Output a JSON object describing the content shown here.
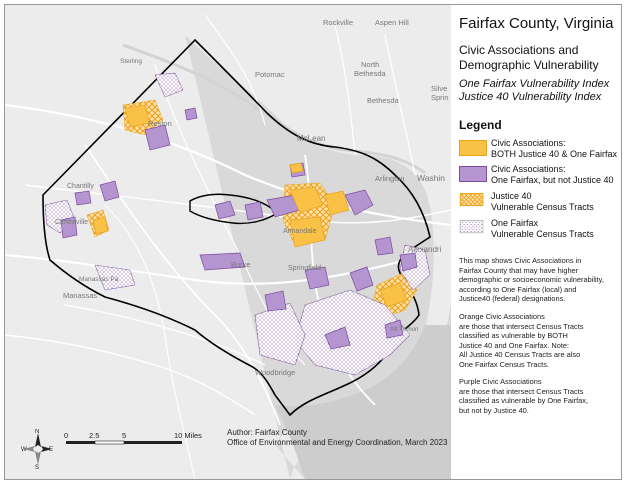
{
  "map": {
    "place_labels": {
      "rockville": "Rockville",
      "aspen_hill": "Aspen Hill",
      "sterling": "Sterling",
      "potomac": "Potomac",
      "north_bethesda": "North\nBethesda",
      "silver_spring": "Silve\nSprin",
      "bethesda": "Bethesda",
      "reston": "Reston",
      "mclean": "McLean",
      "arlington": "Arlington",
      "washington": "Washin",
      "chantilly": "Chantilly",
      "centreville": "Centreville",
      "annandale": "Annandale",
      "alexandria": "Alexandri",
      "burke": "Burke",
      "springfield": "Springfield",
      "manassas_park": "Manassas Pa",
      "manassas": "Manassas",
      "mount_vernon": "Mt Vernon",
      "woodbridge": "Woodbridge"
    },
    "scalebar": {
      "ticks": [
        "0",
        "2.5",
        "5",
        "10 Miles"
      ]
    },
    "north_arrow": {
      "n": "N",
      "s": "S",
      "e": "E",
      "w": "W",
      "icon": "compass-rose-icon"
    },
    "credits": {
      "author": "Author: Fairfax County",
      "office": "Office of Environmental and Energy Coordination, March 2023"
    },
    "colors": {
      "background": "#ededed",
      "water": "#cfcfcf",
      "roads": "#ffffff",
      "county_border": "#000000",
      "orange_fill": "#f9c247",
      "orange_stroke": "#e8a21b",
      "purple_fill": "#b495cf",
      "purple_stroke": "#7b4b9e",
      "justice40_hatch": "#f0a020",
      "onefairfax_dots": "#7b4b9e"
    }
  },
  "legend": {
    "title": "Fairfax County, Virginia",
    "subtitle": "Civic Associations and\nDemographic Vulnerability",
    "index1": "One Fairfax Vulnerability Index",
    "index2": "Justice 40 Vulnerability Index",
    "heading": "Legend",
    "items": [
      {
        "label": "Civic Associations:\nBOTH Justice 40 & One Fairfax",
        "swatch": "orange"
      },
      {
        "label": "Civic Associations:\nOne Fairfax, but not Justice 40",
        "swatch": "purple"
      },
      {
        "label": "Justice 40\nVulnerable Census Tracts",
        "swatch": "hatch"
      },
      {
        "label": "One Fairfax\nVulnerable Census Tracts",
        "swatch": "dots"
      }
    ],
    "note1": "This map shows Civic Associations in\nFairfax County that may have higher\ndemographic or socioeconomic vulnerability,\naccording to  One Fairfax (local) and\nJustice40 (federal) designations.",
    "note2": "Orange Civic Associations\nare those that intersect Census Tracts\nclassified as vulnerable  by BOTH\nJustice 40 and One Fairfax. Note:\nAll Justice 40 Census Tracts are also\nOne Fairfax Census Tracts.",
    "note3": "Purple Civic Associations\nare those that intersect Census Tracts\nclassified as vulnerable by One Fairfax,\nbut not by Justice 40."
  }
}
